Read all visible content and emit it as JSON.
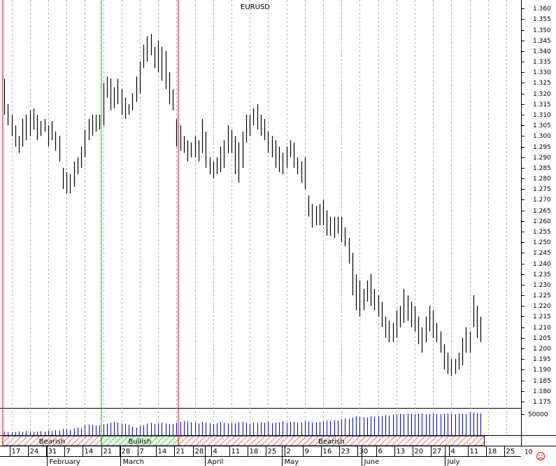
{
  "chart_data": {
    "type": "ohlc",
    "title": "EURUSD",
    "high": [
      1.327,
      1.315,
      1.31,
      1.305,
      1.3,
      1.308,
      1.31,
      1.312,
      1.313,
      1.31,
      1.307,
      1.308,
      1.305,
      1.307,
      1.302,
      1.3,
      1.285,
      1.283,
      1.282,
      1.288,
      1.29,
      1.295,
      1.303,
      1.308,
      1.31,
      1.31,
      1.31,
      1.325,
      1.328,
      1.327,
      1.323,
      1.327,
      1.322,
      1.318,
      1.315,
      1.32,
      1.328,
      1.335,
      1.343,
      1.347,
      1.348,
      1.342,
      1.345,
      1.342,
      1.34,
      1.33,
      1.322,
      1.308,
      1.305,
      1.3,
      1.298,
      1.297,
      1.3,
      1.298,
      1.308,
      1.302,
      1.29,
      1.288,
      1.29,
      1.295,
      1.298,
      1.305,
      1.303,
      1.3,
      1.297,
      1.302,
      1.31,
      1.31,
      1.313,
      1.315,
      1.31,
      1.308,
      1.302,
      1.3,
      1.298,
      1.295,
      1.292,
      1.295,
      1.298,
      1.297,
      1.29,
      1.288,
      1.29,
      1.272,
      1.268,
      1.267,
      1.268,
      1.27,
      1.265,
      1.262,
      1.262,
      1.262,
      1.262,
      1.257,
      1.252,
      1.245,
      1.235,
      1.232,
      1.228,
      1.232,
      1.235,
      1.228,
      1.225,
      1.222,
      1.215,
      1.213,
      1.212,
      1.218,
      1.22,
      1.228,
      1.225,
      1.222,
      1.22,
      1.215,
      1.21,
      1.215,
      1.22,
      1.218,
      1.212,
      1.208,
      1.202,
      1.198,
      1.195,
      1.195,
      1.198,
      1.205,
      1.21,
      1.208,
      1.225,
      1.22,
      1.215
    ],
    "low": [
      1.31,
      1.305,
      1.3,
      1.295,
      1.292,
      1.295,
      1.298,
      1.3,
      1.303,
      1.298,
      1.3,
      1.302,
      1.295,
      1.298,
      1.293,
      1.288,
      1.275,
      1.273,
      1.273,
      1.276,
      1.282,
      1.285,
      1.29,
      1.298,
      1.3,
      1.302,
      1.303,
      1.305,
      1.318,
      1.312,
      1.313,
      1.315,
      1.31,
      1.308,
      1.31,
      1.312,
      1.316,
      1.32,
      1.332,
      1.335,
      1.338,
      1.332,
      1.33,
      1.326,
      1.322,
      1.315,
      1.312,
      1.295,
      1.293,
      1.292,
      1.288,
      1.29,
      1.29,
      1.288,
      1.292,
      1.285,
      1.282,
      1.28,
      1.282,
      1.283,
      1.285,
      1.292,
      1.292,
      1.282,
      1.278,
      1.285,
      1.297,
      1.3,
      1.305,
      1.303,
      1.3,
      1.298,
      1.292,
      1.29,
      1.285,
      1.283,
      1.282,
      1.285,
      1.29,
      1.285,
      1.282,
      1.278,
      1.275,
      1.262,
      1.257,
      1.258,
      1.258,
      1.258,
      1.253,
      1.253,
      1.252,
      1.254,
      1.25,
      1.248,
      1.24,
      1.225,
      1.218,
      1.215,
      1.218,
      1.222,
      1.22,
      1.218,
      1.215,
      1.21,
      1.205,
      1.203,
      1.203,
      1.205,
      1.21,
      1.212,
      1.213,
      1.21,
      1.208,
      1.202,
      1.198,
      1.203,
      1.208,
      1.205,
      1.203,
      1.198,
      1.19,
      1.188,
      1.187,
      1.188,
      1.19,
      1.192,
      1.198,
      1.198,
      1.21,
      1.205,
      1.203
    ],
    "volume": [
      9000,
      8000,
      7000,
      8000,
      9000,
      8000,
      10000,
      9000,
      8000,
      9000,
      10000,
      9000,
      11000,
      10000,
      12000,
      11000,
      15000,
      14000,
      13000,
      16000,
      18000,
      17000,
      24000,
      26000,
      25000,
      23000,
      24000,
      26000,
      27000,
      30000,
      32000,
      30000,
      28000,
      27000,
      25000,
      20000,
      18000,
      22000,
      24000,
      28000,
      30000,
      27000,
      29000,
      30000,
      28000,
      26000,
      27000,
      30000,
      32000,
      34000,
      33000,
      31000,
      30000,
      28000,
      31000,
      30000,
      29000,
      27000,
      29000,
      31000,
      30000,
      28000,
      30000,
      29000,
      31000,
      32000,
      30000,
      28000,
      30000,
      29000,
      31000,
      30000,
      32000,
      29000,
      30000,
      31000,
      33000,
      30000,
      31000,
      32000,
      30000,
      31000,
      34000,
      33000,
      31000,
      30000,
      32000,
      33000,
      35000,
      34000,
      36000,
      35000,
      38000,
      40000,
      39000,
      42000,
      45000,
      44000,
      43000,
      42000,
      45000,
      44000,
      46000,
      45000,
      48000,
      47000,
      49000,
      50000,
      51000,
      50000,
      52000,
      51000,
      50000,
      51000,
      52000,
      50000,
      51000,
      52000,
      51000,
      50000,
      51000,
      52000,
      51000,
      50000,
      52000,
      51000,
      50000,
      55000,
      54000,
      53000,
      52000
    ],
    "bar_color": "#000000",
    "volume_color": "#0000cc",
    "xlim": [
      -1.15,
      141
    ],
    "xticks": [
      {
        "value": 2,
        "label": "17"
      },
      {
        "value": 7,
        "label": "24"
      },
      {
        "value": 12,
        "label": "31"
      },
      {
        "value": 17,
        "label": "7"
      },
      {
        "value": 22,
        "label": "14"
      },
      {
        "value": 27,
        "label": "21"
      },
      {
        "value": 32,
        "label": "28"
      },
      {
        "value": 37,
        "label": "7"
      },
      {
        "value": 42,
        "label": "14"
      },
      {
        "value": 47,
        "label": "21"
      },
      {
        "value": 52,
        "label": "28"
      },
      {
        "value": 57,
        "label": "4"
      },
      {
        "value": 62,
        "label": "11"
      },
      {
        "value": 67,
        "label": "18"
      },
      {
        "value": 72,
        "label": "25"
      },
      {
        "value": 77,
        "label": "2"
      },
      {
        "value": 82,
        "label": "9"
      },
      {
        "value": 87,
        "label": "16"
      },
      {
        "value": 92,
        "label": "23"
      },
      {
        "value": 97,
        "label": "30"
      },
      {
        "value": 102,
        "label": "6"
      },
      {
        "value": 107,
        "label": "13"
      },
      {
        "value": 112,
        "label": "20"
      },
      {
        "value": 117,
        "label": "27"
      },
      {
        "value": 122,
        "label": "4"
      },
      {
        "value": 127,
        "label": "11"
      },
      {
        "value": 132,
        "label": "18"
      },
      {
        "value": 137,
        "label": "25"
      }
    ],
    "months": [
      {
        "label": "February",
        "start": 11.6
      },
      {
        "label": "March",
        "start": 31.7
      },
      {
        "label": "April",
        "start": 54.8
      },
      {
        "label": "May",
        "start": 75.8
      },
      {
        "label": "June",
        "start": 97.5
      },
      {
        "label": "July",
        "start": 120.2
      }
    ],
    "ylim": [
      1.172,
      1.364
    ],
    "yticks": [
      {
        "value": 1.175,
        "label": "1.175"
      },
      {
        "value": 1.18,
        "label": "1.180"
      },
      {
        "value": 1.185,
        "label": "1.185"
      },
      {
        "value": 1.19,
        "label": "1.190"
      },
      {
        "value": 1.195,
        "label": "1.195"
      },
      {
        "value": 1.2,
        "label": "1.200"
      },
      {
        "value": 1.205,
        "label": "1.205"
      },
      {
        "value": 1.21,
        "label": "1.210"
      },
      {
        "value": 1.215,
        "label": "1.215"
      },
      {
        "value": 1.22,
        "label": "1.220"
      },
      {
        "value": 1.225,
        "label": "1.225"
      },
      {
        "value": 1.23,
        "label": "1.230"
      },
      {
        "value": 1.235,
        "label": "1.235"
      },
      {
        "value": 1.24,
        "label": "1.240"
      },
      {
        "value": 1.245,
        "label": "1.245"
      },
      {
        "value": 1.25,
        "label": "1.250"
      },
      {
        "value": 1.255,
        "label": "1.255"
      },
      {
        "value": 1.26,
        "label": "1.260"
      },
      {
        "value": 1.265,
        "label": "1.265"
      },
      {
        "value": 1.27,
        "label": "1.270"
      },
      {
        "value": 1.275,
        "label": "1.275"
      },
      {
        "value": 1.28,
        "label": "1.280"
      },
      {
        "value": 1.285,
        "label": "1.285"
      },
      {
        "value": 1.29,
        "label": "1.290"
      },
      {
        "value": 1.295,
        "label": "1.295"
      },
      {
        "value": 1.3,
        "label": "1.300"
      },
      {
        "value": 1.305,
        "label": "1.305"
      },
      {
        "value": 1.31,
        "label": "1.310"
      },
      {
        "value": 1.315,
        "label": "1.315"
      },
      {
        "value": 1.32,
        "label": "1.320"
      },
      {
        "value": 1.325,
        "label": "1.325"
      },
      {
        "value": 1.33,
        "label": "1.330"
      },
      {
        "value": 1.335,
        "label": "1.335"
      },
      {
        "value": 1.34,
        "label": "1.340"
      },
      {
        "value": 1.345,
        "label": "1.345"
      },
      {
        "value": 1.35,
        "label": "1.350"
      },
      {
        "value": 1.355,
        "label": "1.355"
      },
      {
        "value": 1.36,
        "label": "1.360"
      }
    ],
    "y2lim": [
      0,
      65000
    ],
    "y2ticks": [
      50000
    ],
    "regimes": [
      {
        "label": "Bearish",
        "start": -0.4,
        "end": 26.5,
        "color": "#e00000",
        "pattern": "hatch-red"
      },
      {
        "label": "Bullish",
        "start": 26.5,
        "end": 47.5,
        "color": "#00c000",
        "pattern": "hatch-green"
      },
      {
        "label": "Bearish",
        "start": 47.5,
        "end": 131,
        "color": "#e00000",
        "pattern": "hatch-red"
      }
    ],
    "grid": true,
    "corner_label": "10"
  }
}
